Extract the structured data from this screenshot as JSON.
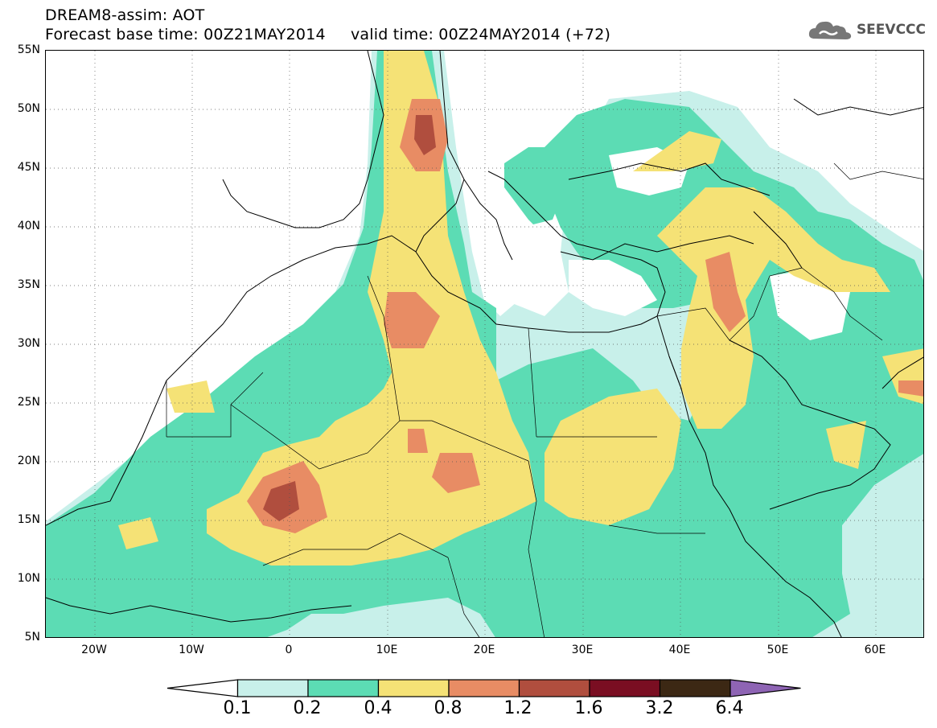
{
  "header": {
    "title_line1": "DREAM8-assim: AOT",
    "title_line2": "Forecast base time: 00Z21MAY2014     valid time: 00Z24MAY2014 (+72)",
    "logo_text": "SEEVCCC"
  },
  "map": {
    "lon_range": [
      -25,
      65
    ],
    "lat_range": [
      5,
      55
    ],
    "lat_labels": [
      "55N",
      "50N",
      "45N",
      "40N",
      "35N",
      "30N",
      "25N",
      "20N",
      "15N",
      "10N",
      "5N"
    ],
    "lon_labels": [
      "20W",
      "10W",
      "0",
      "10E",
      "20E",
      "30E",
      "40E",
      "50E",
      "60E"
    ],
    "grid": "dotted"
  },
  "colorbar": {
    "levels": [
      "0.1",
      "0.2",
      "0.4",
      "0.8",
      "1.2",
      "1.6",
      "3.2",
      "6.4"
    ],
    "colors": [
      "#ffffff",
      "#c8f0ea",
      "#5cdcb4",
      "#f5e276",
      "#e88c64",
      "#b04e3e",
      "#7a0e22",
      "#3c2814",
      "#8e64b4"
    ]
  }
}
